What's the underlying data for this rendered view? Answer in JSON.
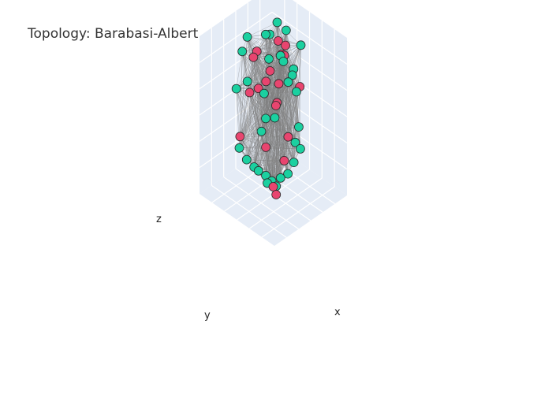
{
  "chart_data": {
    "type": "scatter",
    "subtype": "3d-network",
    "title": "Topology: Barabasi-Albert",
    "xlabel": "x",
    "ylabel": "y",
    "zlabel": "z",
    "grid": true,
    "legend": "none",
    "colors": {
      "node_group_a": "#e8456f",
      "node_group_b": "#1bd0a0",
      "edge": "#7f7f7f",
      "pane": "#e5ecf6",
      "grid": "#ffffff"
    },
    "series": [
      {
        "values": [
          [
            0.35,
            0.62,
            0.88
          ],
          [
            0.55,
            0.4,
            0.9
          ],
          [
            0.62,
            0.55,
            0.92
          ],
          [
            0.48,
            0.7,
            0.85
          ],
          [
            0.7,
            0.58,
            0.8
          ],
          [
            0.4,
            0.5,
            0.75
          ],
          [
            0.58,
            0.62,
            0.72
          ],
          [
            0.66,
            0.3,
            0.7
          ],
          [
            0.5,
            0.45,
            0.6
          ],
          [
            0.62,
            0.58,
            0.5
          ],
          [
            0.38,
            0.7,
            0.62
          ],
          [
            0.55,
            0.35,
            0.4
          ],
          [
            0.45,
            0.55,
            0.3
          ],
          [
            0.3,
            0.75,
            0.35
          ],
          [
            0.6,
            0.45,
            0.2
          ],
          [
            0.5,
            0.5,
            0.05
          ],
          [
            0.52,
            0.48,
            0.0
          ],
          [
            0.7,
            0.62,
            0.6
          ],
          [
            0.72,
            0.55,
            0.86
          ],
          [
            0.42,
            0.62,
            0.66
          ]
        ]
      },
      {
        "values": [
          [
            0.4,
            0.75,
            0.95
          ],
          [
            0.52,
            0.62,
            0.97
          ],
          [
            0.72,
            0.66,
            0.97
          ],
          [
            0.3,
            0.72,
            0.9
          ],
          [
            0.78,
            0.6,
            0.92
          ],
          [
            0.86,
            0.48,
            0.84
          ],
          [
            0.6,
            0.5,
            0.85
          ],
          [
            0.5,
            0.3,
            0.78
          ],
          [
            0.64,
            0.5,
            0.8
          ],
          [
            0.66,
            0.4,
            0.74
          ],
          [
            0.76,
            0.48,
            0.72
          ],
          [
            0.28,
            0.78,
            0.65
          ],
          [
            0.35,
            0.7,
            0.7
          ],
          [
            0.5,
            0.6,
            0.45
          ],
          [
            0.42,
            0.58,
            0.4
          ],
          [
            0.26,
            0.72,
            0.3
          ],
          [
            0.32,
            0.68,
            0.22
          ],
          [
            0.4,
            0.6,
            0.15
          ],
          [
            0.45,
            0.55,
            0.12
          ],
          [
            0.5,
            0.52,
            0.08
          ],
          [
            0.56,
            0.46,
            0.1
          ],
          [
            0.62,
            0.42,
            0.12
          ],
          [
            0.68,
            0.4,
            0.18
          ],
          [
            0.75,
            0.38,
            0.25
          ],
          [
            0.8,
            0.45,
            0.35
          ],
          [
            0.82,
            0.5,
            0.55
          ],
          [
            0.58,
            0.7,
            0.55
          ],
          [
            0.46,
            0.44,
            0.52
          ],
          [
            0.7,
            0.4,
            0.3
          ],
          [
            0.36,
            0.62,
            0.18
          ],
          [
            0.48,
            0.56,
            0.06
          ],
          [
            0.54,
            0.5,
            0.04
          ],
          [
            0.44,
            0.5,
            0.88
          ],
          [
            0.66,
            0.7,
            0.9
          ]
        ]
      }
    ]
  }
}
